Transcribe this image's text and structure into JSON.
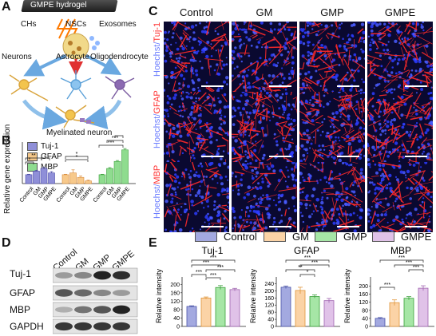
{
  "panelA": {
    "label": "A",
    "hydrogel": "GMPE hydrogel",
    "chs": "CHs",
    "nscs": "NSCs",
    "exosomes": "Exosomes",
    "neurons": "Neurons",
    "astrocyte": "Astrocyte",
    "oligodendrocyte": "Oligodendrocyte",
    "myelinated": "Myelinated neuron"
  },
  "panelB": {
    "label": "B",
    "ylabel": "Relative gene expression",
    "legend": [
      {
        "name": "Tuj-1",
        "color": "#8f8fd8"
      },
      {
        "name": "GFAP",
        "color": "#f7c98b"
      },
      {
        "name": "MBP",
        "color": "#8fdc8f"
      }
    ]
  },
  "panelC": {
    "label": "C",
    "columns": [
      "Control",
      "GM",
      "GMP",
      "GMPE"
    ],
    "rows": [
      {
        "prefix": "Hoechst/",
        "marker": "Tuj-1"
      },
      {
        "prefix": "Hoechst/",
        "marker": "GFAP"
      },
      {
        "prefix": "Hoechst/",
        "marker": "MBP"
      }
    ]
  },
  "panelD": {
    "label": "D",
    "columns": [
      "Control",
      "GM",
      "GMP",
      "GMPE"
    ],
    "rows": [
      "Tuj-1",
      "GFAP",
      "MBP",
      "GAPDH"
    ]
  },
  "panelE": {
    "label": "E",
    "legend": [
      {
        "name": "Control",
        "color": "#a3a9e0"
      },
      {
        "name": "GM",
        "color": "#fbd3a6"
      },
      {
        "name": "GMP",
        "color": "#a6e6a6"
      },
      {
        "name": "GMPE",
        "color": "#e0c2e8"
      }
    ],
    "ylabel": "Relative intensity",
    "sig": "***",
    "sig2": "**",
    "sig1": "*"
  },
  "chart_data": [
    {
      "type": "bar",
      "panel": "B",
      "title": "",
      "xlabel": "",
      "ylabel": "Relative gene expression",
      "groups": [
        {
          "name": "Tuj-1",
          "categories": [
            "Control",
            "GM",
            "GMP",
            "GMPE"
          ],
          "values": [
            1.0,
            1.4,
            1.7,
            1.2
          ],
          "errors": [
            0.05,
            0.1,
            0.12,
            0.15
          ]
        },
        {
          "name": "GFAP",
          "categories": [
            "Control",
            "GM",
            "GMP",
            "GMPE"
          ],
          "values": [
            1.0,
            1.2,
            0.7,
            0.3
          ],
          "errors": [
            0.05,
            0.35,
            0.15,
            0.08
          ]
        },
        {
          "name": "MBP",
          "categories": [
            "Control",
            "GM",
            "GMP",
            "GMPE"
          ],
          "values": [
            1.0,
            1.7,
            2.5,
            3.8
          ],
          "errors": [
            0.05,
            0.1,
            0.1,
            0.15
          ]
        }
      ],
      "ylim": [
        0,
        4.5
      ]
    },
    {
      "type": "bar",
      "panel": "E",
      "title": "Tuj-1",
      "ylabel": "Relative intensity",
      "categories": [
        "Control",
        "GM",
        "GMP",
        "GMPE"
      ],
      "values": [
        95,
        135,
        185,
        175
      ],
      "errors": [
        3,
        5,
        9,
        6
      ],
      "yticks": [
        0,
        40,
        80,
        120,
        160,
        200
      ],
      "ylim": [
        0,
        220
      ]
    },
    {
      "type": "bar",
      "panel": "E",
      "title": "GFAP",
      "ylabel": "Relative intensity",
      "categories": [
        "Control",
        "GM",
        "GMP",
        "GMPE"
      ],
      "values": [
        220,
        202,
        168,
        145
      ],
      "errors": [
        7,
        18,
        9,
        12
      ],
      "yticks": [
        0,
        40,
        80,
        120,
        160,
        200,
        240
      ],
      "ylim": [
        0,
        260
      ]
    },
    {
      "type": "bar",
      "panel": "E",
      "title": "MBP",
      "ylabel": "Relative intensity",
      "categories": [
        "Control",
        "GM",
        "GMP",
        "GMPE"
      ],
      "values": [
        40,
        118,
        140,
        190
      ],
      "errors": [
        4,
        14,
        8,
        12
      ],
      "yticks": [
        0,
        40,
        80,
        120,
        160,
        200
      ],
      "ylim": [
        0,
        230
      ]
    }
  ]
}
